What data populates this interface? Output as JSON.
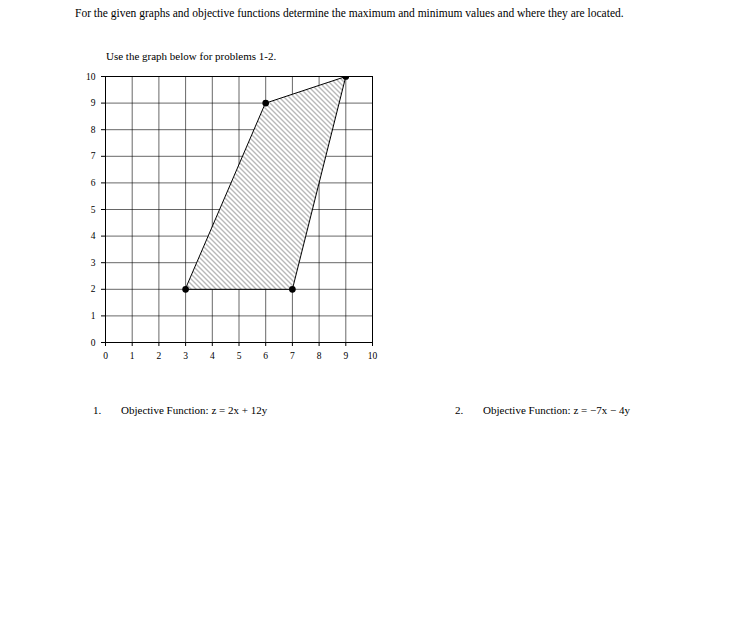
{
  "header": {
    "instructions": "For the given graphs and objective functions determine the maximum and minimum values and where they are located.",
    "note": "Use the graph below for problems 1-2."
  },
  "chart_data": {
    "type": "polygon",
    "x": [
      3,
      7,
      9,
      6
    ],
    "values": [
      2,
      2,
      10,
      9
    ],
    "color": "#000000",
    "marker": "circle",
    "xlim": [
      0,
      10
    ],
    "ylim": [
      0,
      10
    ],
    "xticks": [
      0,
      1,
      2,
      3,
      4,
      5,
      6,
      7,
      8,
      9,
      10
    ],
    "yticks": [
      0,
      1,
      2,
      3,
      4,
      5,
      6,
      7,
      8,
      9,
      10
    ],
    "grid": true
  },
  "problems": [
    {
      "number": "1.",
      "text": "Objective Function: z = 2x + 12y"
    },
    {
      "number": "2.",
      "text": "Objective Function: z = −7x − 4y"
    }
  ]
}
